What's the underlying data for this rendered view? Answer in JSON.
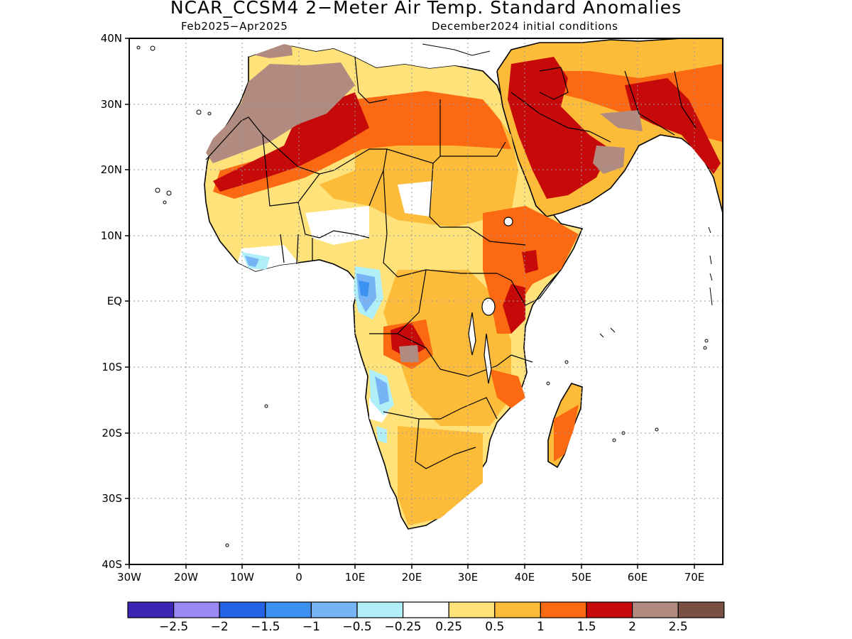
{
  "title": "NCAR_CCSM4 2−Meter Air Temp. Standard Anomalies",
  "subtitle_left": "Feb2025−Apr2025",
  "subtitle_right": "December2024 initial conditions",
  "map": {
    "lon_range": [
      -30,
      75
    ],
    "lat_range": [
      -40,
      40
    ],
    "lat_ticks": [
      {
        "value": 40,
        "label": "40N"
      },
      {
        "value": 30,
        "label": "30N"
      },
      {
        "value": 20,
        "label": "20N"
      },
      {
        "value": 10,
        "label": "10N"
      },
      {
        "value": 0,
        "label": "EQ"
      },
      {
        "value": -10,
        "label": "10S"
      },
      {
        "value": -20,
        "label": "20S"
      },
      {
        "value": -30,
        "label": "30S"
      },
      {
        "value": -40,
        "label": "40S"
      }
    ],
    "lon_ticks": [
      {
        "value": -30,
        "label": "30W"
      },
      {
        "value": -20,
        "label": "20W"
      },
      {
        "value": -10,
        "label": "10W"
      },
      {
        "value": 0,
        "label": "0"
      },
      {
        "value": 10,
        "label": "10E"
      },
      {
        "value": 20,
        "label": "20E"
      },
      {
        "value": 30,
        "label": "30E"
      },
      {
        "value": 40,
        "label": "40E"
      },
      {
        "value": 50,
        "label": "50E"
      },
      {
        "value": 60,
        "label": "60E"
      },
      {
        "value": 70,
        "label": "70E"
      }
    ],
    "grid": true
  },
  "colorbar": {
    "colors": [
      "#3a25b5",
      "#9a88f3",
      "#2463e6",
      "#3b92f0",
      "#76b4f6",
      "#b0eef8",
      "#ffffff",
      "#ffe27a",
      "#fdbb3a",
      "#fb6a12",
      "#c60a0a",
      "#b28b80",
      "#7a5044"
    ],
    "labels": [
      "−2.5",
      "−2",
      "−1.5",
      "−1",
      "−0.5",
      "−0.25",
      "0.25",
      "0.5",
      "1",
      "1.5",
      "2",
      "2.5"
    ]
  }
}
